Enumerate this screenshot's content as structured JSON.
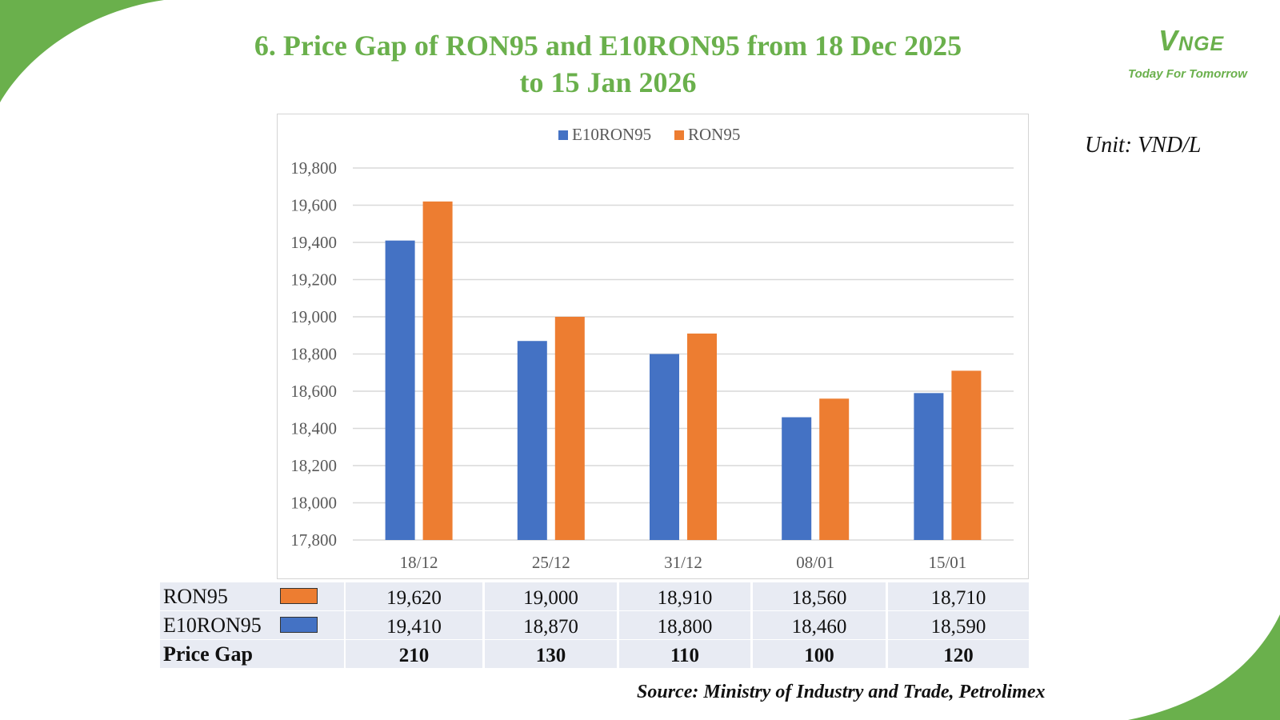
{
  "title": {
    "line1": "6. Price Gap of RON95 and E10RON95 from 18 Dec 2025",
    "line2": "to 15 Jan 2026"
  },
  "logo": {
    "mark_v": "V",
    "mark_rest": "NGE",
    "tagline": "Today For Tomorrow"
  },
  "unit": "Unit: VND/L",
  "colors": {
    "e10": "#4472c4",
    "ron95": "#ed7d31",
    "accent": "#6ab04c",
    "grid": "#d9d9d9",
    "axis_text": "#595959"
  },
  "chart_data": {
    "type": "bar",
    "title": "",
    "xlabel": "",
    "ylabel": "",
    "categories": [
      "18/12",
      "25/12",
      "31/12",
      "08/01",
      "15/01"
    ],
    "series": [
      {
        "name": "E10RON95",
        "values": [
          19410,
          18870,
          18800,
          18460,
          18590
        ]
      },
      {
        "name": "RON95",
        "values": [
          19620,
          19000,
          18910,
          18560,
          18710
        ]
      }
    ],
    "ylim": [
      17800,
      19800
    ],
    "yticks": [
      "17,800",
      "18,000",
      "18,200",
      "18,400",
      "18,600",
      "18,800",
      "19,000",
      "19,200",
      "19,400",
      "19,600",
      "19,800"
    ],
    "grid": true,
    "legend_position": "top-center"
  },
  "table": {
    "rows": [
      {
        "label": "RON95",
        "values": [
          "19,620",
          "19,000",
          "18,910",
          "18,560",
          "18,710"
        ]
      },
      {
        "label": "E10RON95",
        "values": [
          "19,410",
          "18,870",
          "18,800",
          "18,460",
          "18,590"
        ]
      },
      {
        "label": "Price Gap",
        "values": [
          "210",
          "130",
          "110",
          "100",
          "120"
        ]
      }
    ]
  },
  "source": "Source: Ministry of Industry and Trade, Petrolimex"
}
